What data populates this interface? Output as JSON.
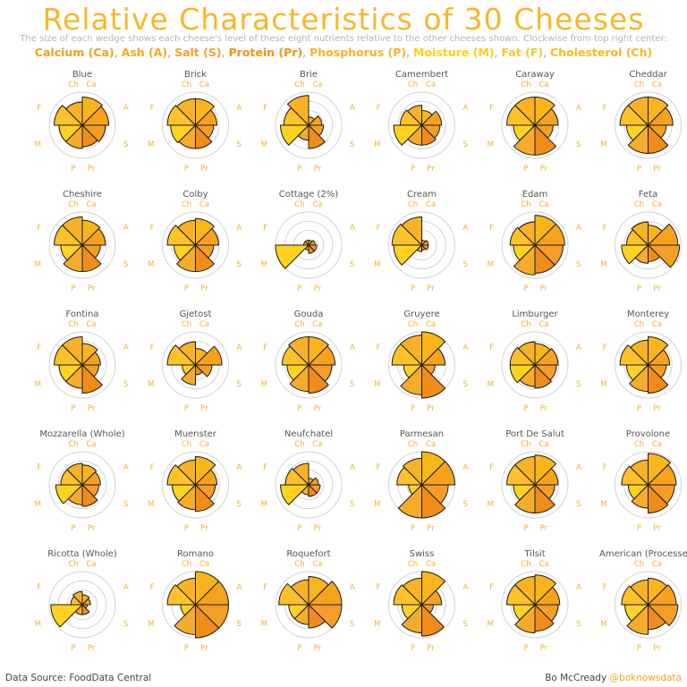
{
  "title": "Relative Characteristics of 30 Cheeses",
  "subtitle": "The size of each wedge shows each cheese's level of these eight nutrients relative to the other cheeses shown. Clockwise from top right center:",
  "legend": [
    {
      "label": "Calcium (Ca)",
      "color": "#f0a020"
    },
    {
      "label": "Ash (A)",
      "color": "#f5a623"
    },
    {
      "label": "Salt (S)",
      "color": "#f3a02c"
    },
    {
      "label": "Protein (Pr)",
      "color": "#f29418"
    },
    {
      "label": "Phosphorus (P)",
      "color": "#f7b32c"
    },
    {
      "label": "Moisture (M)",
      "color": "#fcd116"
    },
    {
      "label": "Fat (F)",
      "color": "#fbc52c"
    },
    {
      "label": "Cholesterol (Ch)",
      "color": "#f9b820"
    }
  ],
  "source": "Data Source: FoodData Central",
  "author": "Bo McCready",
  "handle": "@boknowsdata",
  "chart_data": {
    "type": "radial-wedge",
    "nutrient_order": [
      "Ca",
      "A",
      "S",
      "Pr",
      "P",
      "M",
      "F",
      "Ch"
    ],
    "axis_labels": [
      "Ca",
      "A",
      "S",
      "Pr",
      "P",
      "M",
      "F",
      "Ch"
    ],
    "wedge_colors": [
      "#fab51a",
      "#f7a21d",
      "#f59e25",
      "#f08c1a",
      "#f6ac2a",
      "#ffd21f",
      "#fdc12a",
      "#f9b226"
    ],
    "cheeses": [
      {
        "name": "Blue",
        "values": [
          0.85,
          0.8,
          0.7,
          0.65,
          0.7,
          0.7,
          0.85,
          0.7
        ]
      },
      {
        "name": "Brick",
        "values": [
          0.8,
          0.65,
          0.55,
          0.7,
          0.7,
          0.75,
          0.85,
          0.8
        ]
      },
      {
        "name": "Brie",
        "values": [
          0.25,
          0.4,
          0.45,
          0.7,
          0.45,
          0.85,
          0.75,
          0.9
        ]
      },
      {
        "name": "Camembert",
        "values": [
          0.45,
          0.6,
          0.55,
          0.6,
          0.6,
          0.85,
          0.65,
          0.6
        ]
      },
      {
        "name": "Caraway",
        "values": [
          0.85,
          0.7,
          0.55,
          0.9,
          0.9,
          0.65,
          0.85,
          0.85
        ]
      },
      {
        "name": "Cheddar",
        "values": [
          0.85,
          0.75,
          0.55,
          0.85,
          0.85,
          0.65,
          0.85,
          0.85
        ]
      },
      {
        "name": "Cheshire",
        "values": [
          0.75,
          0.7,
          0.55,
          0.8,
          0.8,
          0.65,
          0.85,
          0.85
        ]
      },
      {
        "name": "Colby",
        "values": [
          0.8,
          0.7,
          0.55,
          0.8,
          0.8,
          0.65,
          0.85,
          0.75
        ]
      },
      {
        "name": "Cottage (2%)",
        "values": [
          0.15,
          0.2,
          0.25,
          0.25,
          0.15,
          1.0,
          0.15,
          0.15
        ]
      },
      {
        "name": "Cream",
        "values": [
          0.15,
          0.2,
          0.2,
          0.15,
          0.2,
          0.85,
          0.9,
          0.85
        ]
      },
      {
        "name": "Edam",
        "values": [
          0.9,
          0.9,
          0.85,
          0.85,
          0.9,
          0.65,
          0.75,
          0.7
        ]
      },
      {
        "name": "Feta",
        "values": [
          0.6,
          0.9,
          0.95,
          0.5,
          0.55,
          0.8,
          0.65,
          0.7
        ]
      },
      {
        "name": "Fontina",
        "values": [
          0.65,
          0.55,
          0.5,
          0.85,
          0.7,
          0.7,
          0.85,
          0.85
        ]
      },
      {
        "name": "Gjetost",
        "values": [
          0.5,
          0.8,
          0.5,
          0.3,
          0.6,
          0.4,
          0.85,
          0.7
        ]
      },
      {
        "name": "Gouda",
        "values": [
          0.85,
          0.8,
          0.7,
          0.85,
          0.8,
          0.65,
          0.8,
          0.85
        ]
      },
      {
        "name": "Gruyere",
        "values": [
          1.0,
          0.7,
          0.4,
          1.0,
          0.9,
          0.55,
          0.9,
          0.9
        ]
      },
      {
        "name": "Limburger",
        "values": [
          0.65,
          0.7,
          0.65,
          0.7,
          0.65,
          0.75,
          0.75,
          0.7
        ]
      },
      {
        "name": "Monterey",
        "values": [
          0.85,
          0.65,
          0.55,
          0.85,
          0.8,
          0.65,
          0.85,
          0.75
        ]
      },
      {
        "name": "Mozzarella (Whole)",
        "values": [
          0.6,
          0.55,
          0.5,
          0.65,
          0.6,
          0.8,
          0.65,
          0.65
        ]
      },
      {
        "name": "Muenster",
        "values": [
          0.85,
          0.65,
          0.6,
          0.8,
          0.75,
          0.7,
          0.85,
          0.75
        ]
      },
      {
        "name": "Neufchatel",
        "values": [
          0.2,
          0.3,
          0.35,
          0.35,
          0.3,
          0.85,
          0.7,
          0.65
        ]
      },
      {
        "name": "Parmesan",
        "values": [
          1.0,
          1.0,
          0.8,
          1.0,
          1.0,
          0.4,
          0.75,
          0.8
        ]
      },
      {
        "name": "Port De Salut",
        "values": [
          0.9,
          0.7,
          0.6,
          0.85,
          0.85,
          0.65,
          0.85,
          0.85
        ]
      },
      {
        "name": "Provolone",
        "values": [
          0.95,
          0.85,
          0.8,
          0.85,
          0.7,
          0.6,
          0.8,
          0.75
        ]
      },
      {
        "name": "Ricotta (Whole)",
        "values": [
          0.3,
          0.25,
          0.15,
          0.3,
          0.3,
          0.95,
          0.35,
          0.4
        ]
      },
      {
        "name": "Romano",
        "values": [
          1.0,
          1.0,
          1.0,
          1.0,
          0.9,
          0.45,
          0.85,
          0.8
        ]
      },
      {
        "name": "Roquefort",
        "values": [
          0.85,
          1.0,
          1.0,
          0.7,
          0.6,
          0.6,
          0.9,
          0.75
        ]
      },
      {
        "name": "Swiss",
        "values": [
          1.0,
          0.6,
          0.35,
          0.95,
          0.85,
          0.6,
          0.85,
          0.8
        ]
      },
      {
        "name": "Tilsit",
        "values": [
          0.9,
          0.75,
          0.7,
          0.8,
          0.85,
          0.65,
          0.85,
          0.85
        ]
      },
      {
        "name": "American (Processed)",
        "values": [
          0.8,
          0.85,
          0.9,
          0.75,
          0.9,
          0.7,
          0.8,
          0.75
        ]
      }
    ]
  }
}
